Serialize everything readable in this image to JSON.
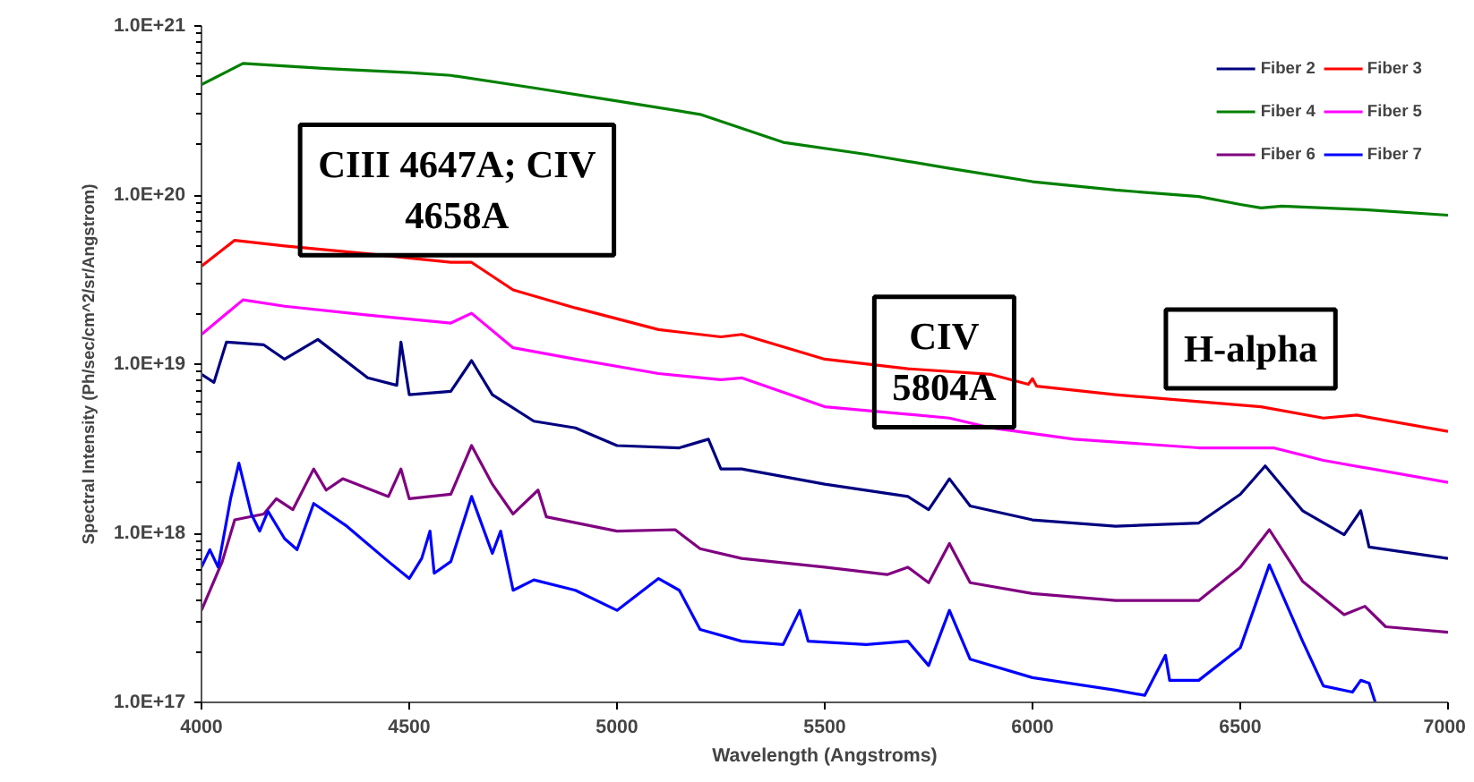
{
  "chart_data": {
    "type": "line",
    "xlabel": "Wavelength (Angstroms)",
    "ylabel": "Spectral Intensity (Ph/sec/cm^2/sr/Angstrom)",
    "log": "y",
    "grid": false,
    "legend": "top right",
    "line_style": "solid",
    "xlim": [
      4000,
      7000
    ],
    "xticks": [
      4000,
      4500,
      5000,
      5500,
      6000,
      6500,
      7000
    ],
    "ylim": [
      1e+17,
      1e+21
    ],
    "yticks": [
      {
        "value": 1e+17,
        "label": "1.0E+17"
      },
      {
        "value": 1e+18,
        "label": "1.0E+18"
      },
      {
        "value": 1e+19,
        "label": "1.0E+19"
      },
      {
        "value": 1e+20,
        "label": "1.0E+20"
      },
      {
        "value": 1e+21,
        "label": "1.0E+21"
      }
    ],
    "annotations": [
      "CIII 4647A; CIV 4658A",
      "CIV 5804A",
      "H-alpha"
    ],
    "series": [
      {
        "name": "Fiber 2",
        "color": "#000080",
        "x": [
          4000,
          4030,
          4060,
          4150,
          4200,
          4280,
          4400,
          4470,
          4480,
          4500,
          4600,
          4650,
          4700,
          4800,
          4900,
          5000,
          5150,
          5220,
          5250,
          5300,
          5500,
          5700,
          5750,
          5800,
          5850,
          6000,
          6200,
          6400,
          6500,
          6560,
          6650,
          6750,
          6790,
          6810,
          7000
        ],
        "values": [
          8.7e+18,
          7.8e+18,
          1.35e+19,
          1.3e+19,
          1.07e+19,
          1.4e+19,
          8.3e+18,
          7.5e+18,
          1.35e+19,
          6.6e+18,
          6.9e+18,
          1.05e+19,
          6.6e+18,
          4.6e+18,
          4.2e+18,
          3.3e+18,
          3.2e+18,
          3.6e+18,
          2.4e+18,
          2.4e+18,
          1.95e+18,
          1.65e+18,
          1.38e+18,
          2.1e+18,
          1.45e+18,
          1.2e+18,
          1.1e+18,
          1.15e+18,
          1.7e+18,
          2.5e+18,
          1.36e+18,
          9.8e+17,
          1.36e+18,
          8.3e+17,
          7.1e+17
        ]
      },
      {
        "name": "Fiber 3",
        "color": "#ff0000",
        "x": [
          4000,
          4080,
          4200,
          4400,
          4600,
          4650,
          4750,
          4900,
          5100,
          5250,
          5300,
          5500,
          5700,
          5900,
          5990,
          6000,
          6010,
          6200,
          6400,
          6550,
          6700,
          6780,
          7000
        ],
        "values": [
          3.8e+19,
          5.4e+19,
          5e+19,
          4.5e+19,
          4e+19,
          4e+19,
          2.75e+19,
          2.15e+19,
          1.6e+19,
          1.45e+19,
          1.5e+19,
          1.07e+19,
          9.4e+18,
          8.7e+18,
          7.6e+18,
          8.2e+18,
          7.4e+18,
          6.6e+18,
          6e+18,
          5.6e+18,
          4.8e+18,
          5e+18,
          4e+18
        ]
      },
      {
        "name": "Fiber 4",
        "color": "#008000",
        "x": [
          4000,
          4100,
          4300,
          4500,
          4600,
          4800,
          5000,
          5200,
          5400,
          5600,
          5800,
          6000,
          6200,
          6400,
          6500,
          6550,
          6600,
          6800,
          7000
        ],
        "values": [
          4.5e+20,
          6e+20,
          5.6e+20,
          5.3e+20,
          5.1e+20,
          4.3e+20,
          3.6e+20,
          3e+20,
          2.05e+20,
          1.74e+20,
          1.44e+20,
          1.2e+20,
          1.07e+20,
          9.8e+19,
          8.8e+19,
          8.4e+19,
          8.6e+19,
          8.2e+19,
          7.6e+19
        ]
      },
      {
        "name": "Fiber 5",
        "color": "#ff00ff",
        "x": [
          4000,
          4100,
          4200,
          4400,
          4600,
          4650,
          4750,
          4900,
          5100,
          5250,
          5300,
          5500,
          5800,
          5900,
          6100,
          6400,
          6580,
          6700,
          7000
        ],
        "values": [
          1.5e+19,
          2.4e+19,
          2.2e+19,
          1.95e+19,
          1.75e+19,
          2e+19,
          1.25e+19,
          1.07e+19,
          8.8e+18,
          8.1e+18,
          8.3e+18,
          5.6e+18,
          4.8e+18,
          4.2e+18,
          3.6e+18,
          3.2e+18,
          3.2e+18,
          2.7e+18,
          2e+18
        ]
      },
      {
        "name": "Fiber 6",
        "color": "#800080",
        "x": [
          4000,
          4050,
          4080,
          4150,
          4180,
          4220,
          4270,
          4300,
          4340,
          4450,
          4480,
          4500,
          4600,
          4650,
          4700,
          4750,
          4810,
          4830,
          5000,
          5140,
          5200,
          5300,
          5500,
          5650,
          5700,
          5750,
          5800,
          5850,
          6000,
          6200,
          6400,
          6500,
          6570,
          6650,
          6750,
          6800,
          6850,
          7000
        ],
        "values": [
          3.5e+17,
          6.8e+17,
          1.2e+18,
          1.3e+18,
          1.6e+18,
          1.38e+18,
          2.4e+18,
          1.8e+18,
          2.1e+18,
          1.65e+18,
          2.4e+18,
          1.6e+18,
          1.7e+18,
          3.3e+18,
          1.95e+18,
          1.3e+18,
          1.8e+18,
          1.25e+18,
          1.03e+18,
          1.05e+18,
          8.1e+17,
          7.1e+17,
          6.3e+17,
          5.7e+17,
          6.3e+17,
          5.1e+17,
          8.7e+17,
          5.1e+17,
          4.4e+17,
          4e+17,
          4e+17,
          6.3e+17,
          1.05e+18,
          5.2e+17,
          3.3e+17,
          3.7e+17,
          2.8e+17,
          2.6e+17
        ]
      },
      {
        "name": "Fiber 7",
        "color": "#0000ff",
        "x": [
          4000,
          4020,
          4040,
          4070,
          4090,
          4120,
          4140,
          4160,
          4200,
          4230,
          4270,
          4350,
          4450,
          4500,
          4530,
          4550,
          4560,
          4600,
          4650,
          4700,
          4720,
          4750,
          4800,
          4900,
          5000,
          5100,
          5150,
          5200,
          5300,
          5400,
          5440,
          5460,
          5600,
          5700,
          5750,
          5800,
          5850,
          6000,
          6200,
          6270,
          6320,
          6330,
          6400,
          6500,
          6570,
          6650,
          6700,
          6770,
          6790,
          6810,
          6825
        ],
        "values": [
          6.3e+17,
          8e+17,
          6.3e+17,
          1.6e+18,
          2.6e+18,
          1.3e+18,
          1.03e+18,
          1.35e+18,
          9.3e+17,
          8e+17,
          1.5e+18,
          1.1e+18,
          6.8e+17,
          5.4e+17,
          7.1e+17,
          1.03e+18,
          5.8e+17,
          6.8e+17,
          1.65e+18,
          7.6e+17,
          1.03e+18,
          4.6e+17,
          5.3e+17,
          4.6e+17,
          3.5e+17,
          5.4e+17,
          4.6e+17,
          2.7e+17,
          2.3e+17,
          2.2e+17,
          3.5e+17,
          2.3e+17,
          2.2e+17,
          2.3e+17,
          1.65e+17,
          3.5e+17,
          1.8e+17,
          1.4e+17,
          1.18e+17,
          1.1e+17,
          1.9e+17,
          1.35e+17,
          1.35e+17,
          2.1e+17,
          6.5e+17,
          2.3e+17,
          1.25e+17,
          1.15e+17,
          1.35e+17,
          1.3e+17,
          1e+17
        ]
      }
    ]
  }
}
